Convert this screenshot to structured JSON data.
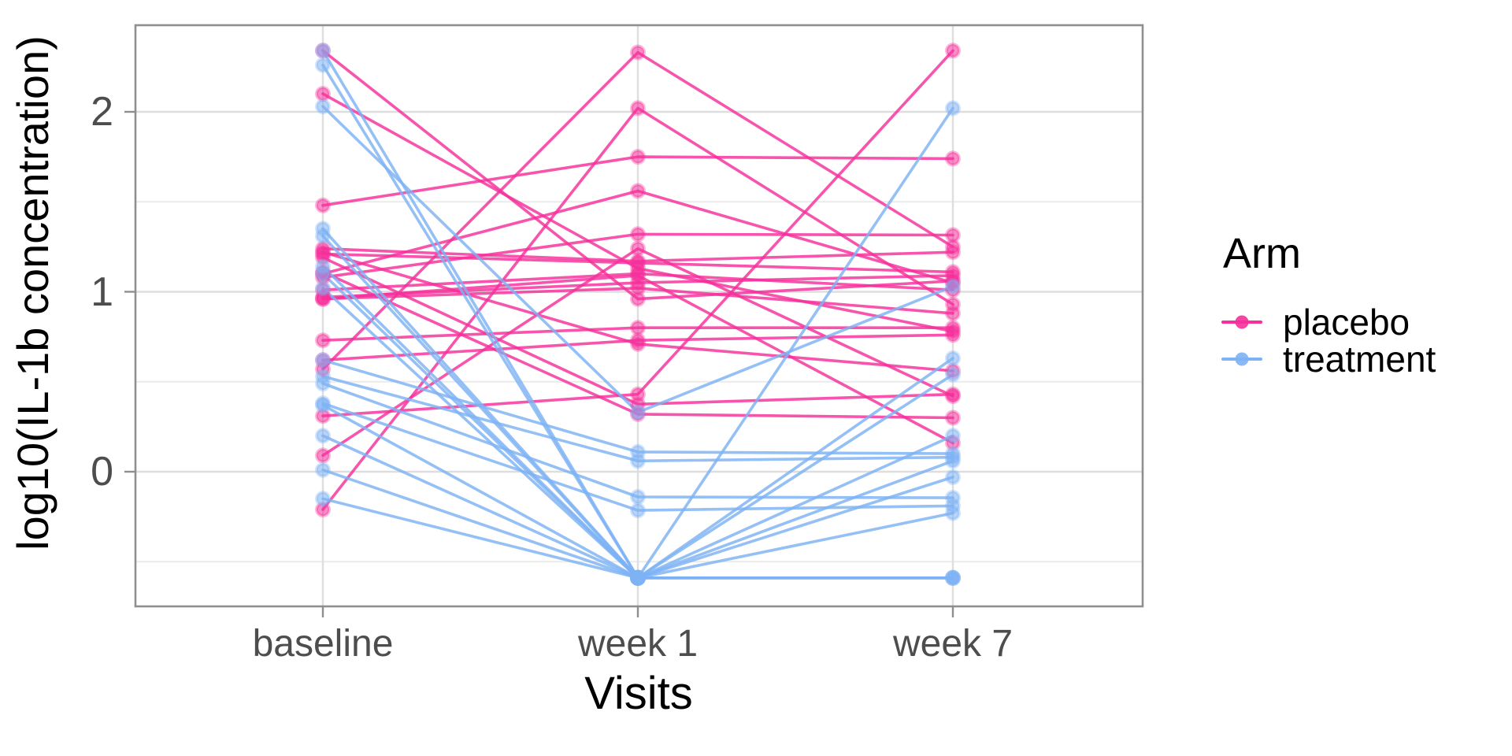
{
  "chart_data": {
    "type": "line",
    "variant": "spaghetti-plot (per-subject trajectories)",
    "title": "",
    "xlabel": "Visits",
    "ylabel": "log10(IL-1b concentration)",
    "x_categories": [
      "baseline",
      "week 1",
      "week 7"
    ],
    "y_tick_labels": [
      "0",
      "1",
      "2"
    ],
    "y_major_ticks": [
      0,
      1,
      2
    ],
    "y_minor_gridlines": [
      -0.5,
      0.5,
      1.5
    ],
    "ylim": [
      -0.75,
      2.48
    ],
    "grid": true,
    "legend_position": "right",
    "legend": {
      "title": "Arm",
      "items": [
        {
          "label": "placebo",
          "color": "#F5309B"
        },
        {
          "label": "treatment",
          "color": "#7DB2F4"
        }
      ]
    },
    "series": [
      {
        "name": "placebo",
        "color": "#F5309B",
        "subjects": [
          [
            0.57,
            2.33,
            1.25
          ],
          [
            2.34,
            0.96,
            1.06
          ],
          [
            2.1,
            1.13,
            0.78
          ],
          [
            1.21,
            1.16,
            1.11
          ],
          [
            -0.21,
            2.02,
            0.93
          ],
          [
            1.48,
            1.75,
            1.74
          ],
          [
            1.1,
            1.56,
            1.05
          ],
          [
            1.08,
            1.32,
            1.315
          ],
          [
            1.01,
            1.1,
            1.01
          ],
          [
            0.97,
            1.05,
            1.09
          ],
          [
            0.96,
            1.02,
            0.88
          ],
          [
            0.73,
            0.8,
            0.8
          ],
          [
            0.62,
            0.73,
            0.76
          ],
          [
            1.22,
            0.71,
            0.56
          ],
          [
            0.31,
            0.43,
            2.34
          ],
          [
            0.09,
            1.24,
            0.42
          ],
          [
            1.24,
            1.17,
            1.22
          ],
          [
            1.11,
            0.32,
            0.3
          ],
          [
            0.96,
            1.09,
            0.16
          ],
          [
            1.19,
            0.375,
            0.43
          ]
        ]
      },
      {
        "name": "treatment",
        "color": "#7DB2F4",
        "subjects": [
          [
            2.34,
            -0.59,
            0.06
          ],
          [
            2.26,
            -0.59,
            -0.59
          ],
          [
            2.03,
            0.33,
            1.03
          ],
          [
            1.35,
            -0.59,
            2.02
          ],
          [
            1.31,
            -0.59,
            0.63
          ],
          [
            1.14,
            -0.59,
            0.54
          ],
          [
            1.1,
            -0.59,
            0.2
          ],
          [
            1.02,
            -0.59,
            -0.59
          ],
          [
            0.62,
            0.11,
            0.1
          ],
          [
            0.53,
            0.06,
            0.08
          ],
          [
            0.49,
            -0.14,
            -0.145
          ],
          [
            0.38,
            -0.215,
            -0.19
          ],
          [
            0.37,
            -0.59,
            -0.03
          ],
          [
            0.2,
            -0.59,
            -0.23
          ],
          [
            0.01,
            -0.59,
            -0.59
          ],
          [
            -0.15,
            -0.59,
            -0.59
          ]
        ]
      }
    ]
  }
}
